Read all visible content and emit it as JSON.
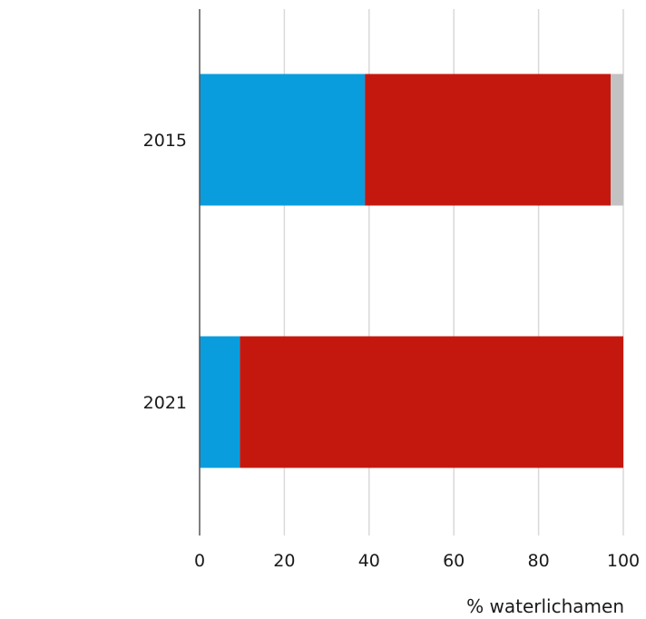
{
  "chart_data": {
    "type": "bar",
    "orientation": "horizontal",
    "stacked": true,
    "categories": [
      "2015",
      "2021"
    ],
    "series": [
      {
        "values": [
          39,
          9.5
        ],
        "color": "#0a9ddd"
      },
      {
        "values": [
          58,
          90.5
        ],
        "color": "#c4180f"
      },
      {
        "values": [
          3,
          0
        ],
        "color": "#c2c2c2"
      }
    ],
    "xlim": [
      0,
      100
    ],
    "xticks": [
      0,
      20,
      40,
      60,
      80,
      100
    ],
    "xticklabels": [
      "0",
      "20",
      "40",
      "60",
      "80",
      "100"
    ],
    "xlabel": "% waterlichamen",
    "grid": true
  }
}
